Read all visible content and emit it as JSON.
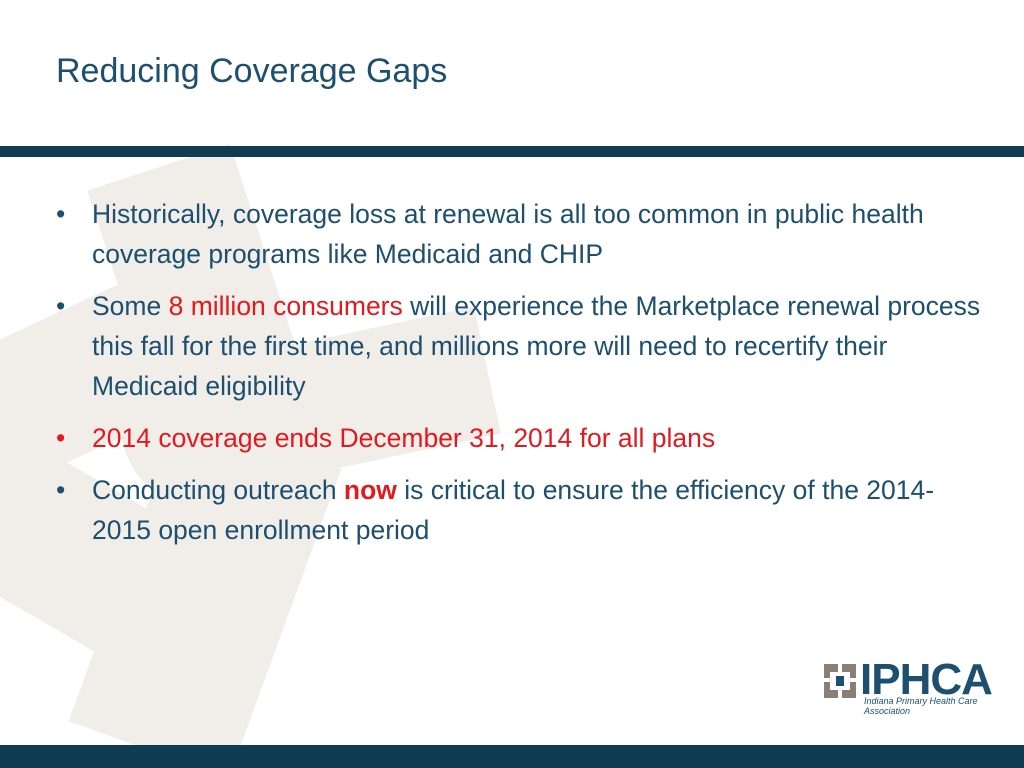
{
  "slide": {
    "title": "Reducing Coverage Gaps",
    "bullets": [
      {
        "text": "Historically, coverage loss at renewal is all too common in public health coverage programs like Medicaid and CHIP"
      },
      {
        "before": "Some ",
        "highlight": "8 million consumers",
        "after": " will experience the Marketplace renewal process this fall for the first time, and millions more will need to recertify their Medicaid eligibility"
      },
      {
        "text": "2014 coverage ends December 31, 2014 for all plans"
      },
      {
        "before": "Conducting outreach ",
        "highlight": "now",
        "after": " is critical to ensure the efficiency of the 2014-2015 open enrollment period"
      }
    ],
    "bullet_char": "•"
  },
  "logo": {
    "name": "IPHCA",
    "subtitle": "Indiana Primary Health Care Association"
  },
  "colors": {
    "title": "#1d4f6e",
    "rule": "#0f3b53",
    "highlight": "#e3191e",
    "background_art": "#f1eeea"
  }
}
